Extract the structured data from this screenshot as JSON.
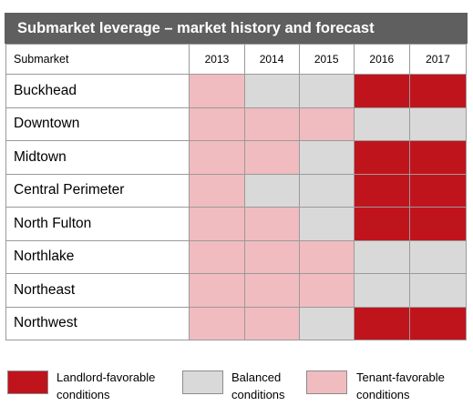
{
  "chart_data": {
    "type": "table",
    "title": "Submarket leverage – market history and forecast",
    "row_header": "Submarket",
    "columns": [
      "2013",
      "2014",
      "2015",
      "2016",
      "2017"
    ],
    "rows": [
      {
        "name": "Buckhead",
        "values": [
          "tenant",
          "balanced",
          "balanced",
          "landlord",
          "landlord"
        ]
      },
      {
        "name": "Downtown",
        "values": [
          "tenant",
          "tenant",
          "tenant",
          "balanced",
          "balanced"
        ]
      },
      {
        "name": "Midtown",
        "values": [
          "tenant",
          "tenant",
          "balanced",
          "landlord",
          "landlord"
        ]
      },
      {
        "name": "Central Perimeter",
        "values": [
          "tenant",
          "balanced",
          "balanced",
          "landlord",
          "landlord"
        ]
      },
      {
        "name": "North Fulton",
        "values": [
          "tenant",
          "tenant",
          "balanced",
          "landlord",
          "landlord"
        ]
      },
      {
        "name": "Northlake",
        "values": [
          "tenant",
          "tenant",
          "tenant",
          "balanced",
          "balanced"
        ]
      },
      {
        "name": "Northeast",
        "values": [
          "tenant",
          "tenant",
          "tenant",
          "balanced",
          "balanced"
        ]
      },
      {
        "name": "Northwest",
        "values": [
          "tenant",
          "tenant",
          "balanced",
          "landlord",
          "landlord"
        ]
      }
    ],
    "legend": [
      {
        "key": "landlord",
        "line1": "Landlord-favorable",
        "line2": "conditions",
        "color": "#c0141c"
      },
      {
        "key": "balanced",
        "line1": "Balanced",
        "line2": "conditions",
        "color": "#d9d9d9"
      },
      {
        "key": "tenant",
        "line1": "Tenant-favorable",
        "line2": "conditions",
        "color": "#f0bcbf"
      }
    ],
    "colors": {
      "header_bg": "#5f5f5f",
      "header_text": "#ffffff",
      "border": "#9a9a9a"
    }
  }
}
